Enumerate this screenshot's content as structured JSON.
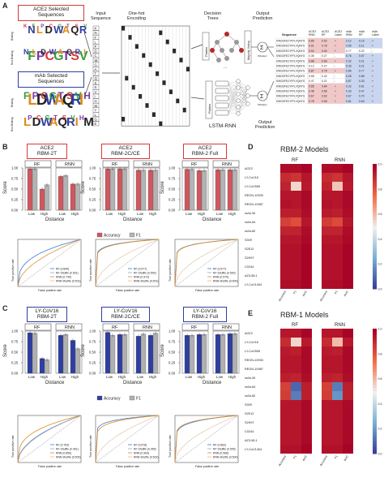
{
  "panel_a": {
    "letter": "A",
    "ace2_box": "ACE2 Selected\nSequences",
    "mab_box": "mAb Selected\nSequences",
    "input_seq": "Input\nSequence",
    "onehot": "One-hot\nEncoding",
    "trees": "Decision\nTrees",
    "majority": "Majority Voting",
    "flatten": "Flatten",
    "flatten2": "Flatten",
    "out_pred_top": "Output\nPrediction",
    "out_pred_bot": "Output\nPrediction",
    "lstm": "LSTM-RNN",
    "logo_labels": [
      "Binding",
      "Non-Binding",
      "Binding",
      "Non-Binding"
    ],
    "seq_letters": [
      "K",
      "N",
      "F",
      "L",
      "P",
      "D",
      "C",
      "W",
      "G",
      "A",
      "T",
      "Q",
      "S",
      "R",
      "V",
      "I",
      "H",
      "M",
      "Y",
      "L",
      "G",
      "E"
    ],
    "table_headers": [
      "Sequence",
      "ACE2 RNN",
      "ACE2 RF",
      "ACE2 Label",
      "mAb RNN",
      "mAb RF",
      "mAb Label"
    ],
    "table_rows": [
      [
        "KWGDFECYFFLVQNYG",
        "0.89",
        "0.92",
        "+",
        "0.12",
        "0.15",
        "+"
      ],
      [
        "KWGDFECYFFLVQNYG",
        "0.91",
        "0.78",
        "+",
        "0.55",
        "0.11",
        "+"
      ],
      [
        "KWGDFECYFFLVQNYG",
        "0.52",
        "0.64",
        "+",
        "0.77",
        "0.22",
        "-"
      ],
      [
        "KWGDFECYFFLVQNYG",
        "0.35",
        "0.27",
        "-",
        "0.76",
        "0.67",
        "+"
      ],
      [
        "KWGDFECYFFLVQNYG",
        "0.88",
        "0.83",
        "+",
        "0.32",
        "0.21",
        "+"
      ],
      [
        "KWGDFECYFFLVQNYG",
        "0.12",
        "0.27",
        "-",
        "0.33",
        "0.21",
        "+"
      ],
      [
        "KWGDFECYFFLVQNYG",
        "0.87",
        "0.79",
        "+",
        "0.86",
        "0.77",
        "+"
      ],
      [
        "KWGDFECYFFLVQNYG",
        "0.55",
        "0.42",
        "-",
        "0.28",
        "0.68",
        "+"
      ],
      [
        "KWGDFECYFFLVQNYG",
        "0.47",
        "0.21",
        "-",
        "0.57",
        "0.33",
        "+"
      ],
      [
        "KWGDFECYFFLVQNYG",
        "0.65",
        "0.84",
        "+",
        "0.22",
        "0.61",
        "+"
      ],
      [
        "KWGDFECYFFLVQNYG",
        "0.48",
        "0.56",
        "+",
        "0.33",
        "0.47",
        "+"
      ],
      [
        "KWGDFECYFFLVQNYG",
        "0.67",
        "0.62",
        "+",
        "0.67",
        "0.70",
        "+"
      ],
      [
        "KWGDFECYFFLVQNYG",
        "0.78",
        "0.96",
        "+",
        "0.81",
        "0.63",
        "+"
      ]
    ]
  },
  "panel_b": {
    "letter": "B",
    "titles": [
      "ACE2\nRBM-2T",
      "ACE2\nRBM-2C/CE",
      "ACE2\nRBM-2 Full"
    ],
    "rf": "RF",
    "rnn": "RNN",
    "ylabel": "Score",
    "xlabel": "Distance",
    "legend": [
      "Accuracy",
      "F1"
    ],
    "roc_ylabel": "True positive rate",
    "roc_xlabel": "False positive rate",
    "roc_legend_1": [
      "RF (0.849)",
      "RF Shuffle (0.501)",
      "RNN (0.749)",
      "RNN Shuffle (0.501)"
    ],
    "roc_legend_2": [
      "RF (0.977)",
      "RF Shuffle (0.500)",
      "RNN (0.973)",
      "RNN Shuffle (0.501)"
    ],
    "roc_legend_3": [
      "RF (0.977)",
      "RF Shuffle (0.500)",
      "RNN (0.975)",
      "RNN Shuffle (0.500)"
    ]
  },
  "panel_c": {
    "letter": "C",
    "titles": [
      "LY-CoV16\nRBM-2T",
      "LY-CoV16\nRBM-2C/CE",
      "LY-CoV16\nRBM-2 Full"
    ],
    "rf": "RF",
    "rnn": "RNN",
    "ylabel": "Score",
    "xlabel": "Distance",
    "legend": [
      "Accuracy",
      "F1"
    ],
    "roc_ylabel": "True positive rate",
    "roc_xlabel": "False positive rate",
    "roc_legend_1": [
      "RF (0.764)",
      "RF Shuffle (0.491)",
      "RNN (0.856)",
      "RNN Shuffle (0.500)"
    ],
    "roc_legend_2": [
      "RF (0.978)",
      "RF Shuffle (0.499)",
      "RNN (0.963)",
      "RNN Shuffle (0.502)"
    ],
    "roc_legend_3": [
      "RF (0.962)",
      "RF Shuffle (0.505)",
      "RNN (0.968)",
      "RNN Shuffle (0.500)"
    ]
  },
  "panel_d": {
    "letter": "D",
    "title": "RBM-2 Models",
    "sub": [
      "RF",
      "RNN"
    ],
    "rows": [
      "ACE2",
      "LY-CoV16",
      "LY-CoV555",
      "REGN-10933",
      "REGN-10987",
      "mAb-30",
      "mAb-64",
      "mAb-82",
      "S309",
      "S2E12",
      "S2H97",
      "C0244",
      "AZ3-58.1",
      "LY-CoV1404"
    ],
    "cols": [
      "Accuracy",
      "F1",
      "AUC"
    ]
  },
  "panel_e": {
    "letter": "E",
    "title": "RBM-1 Models",
    "sub": [
      "RF",
      "RNN"
    ],
    "rows": [
      "ACE2",
      "LY-CoV16",
      "LY-CoV555",
      "REGN-10933",
      "REGN-10987",
      "mAb-30",
      "mAb-64",
      "mAb-82",
      "S309",
      "S2E12",
      "S2H97",
      "C0244",
      "AZ3-58.1",
      "LY-CoV1404"
    ],
    "cols": [
      "Accuracy",
      "F1",
      "AUC"
    ]
  },
  "colorbar_ticks": [
    "1.0",
    "0.8",
    "0.6",
    "0.4",
    "0.2",
    "0.0"
  ],
  "colors": {
    "red": "#d0575f",
    "gray": "#b3b3b3",
    "blue": "#2f3ea0",
    "gray2": "#b0b0b0"
  },
  "chart_data": [
    {
      "type": "bar",
      "title": "ACE2 RBM-2T",
      "categories": [
        "Low",
        "High"
      ],
      "panels": [
        "RF",
        "RNN"
      ],
      "series": [
        {
          "name": "Accuracy",
          "values": {
            "RF": [
              0.98,
              0.5
            ],
            "RNN": [
              0.8,
              0.62
            ]
          }
        },
        {
          "name": "F1",
          "values": {
            "RF": [
              0.98,
              0.6
            ],
            "RNN": [
              0.82,
              0.62
            ]
          }
        }
      ],
      "ylim": [
        0,
        1
      ]
    },
    {
      "type": "bar",
      "title": "ACE2 RBM-2C/CE",
      "categories": [
        "Low",
        "High"
      ],
      "panels": [
        "RF",
        "RNN"
      ],
      "series": [
        {
          "name": "Accuracy",
          "values": {
            "RF": [
              0.98,
              0.98
            ],
            "RNN": [
              0.95,
              0.95
            ]
          }
        },
        {
          "name": "F1",
          "values": {
            "RF": [
              0.98,
              0.98
            ],
            "RNN": [
              0.95,
              0.95
            ]
          }
        }
      ],
      "ylim": [
        0,
        1
      ]
    },
    {
      "type": "bar",
      "title": "ACE2 RBM-2 Full",
      "categories": [
        "Low",
        "High"
      ],
      "panels": [
        "RF",
        "RNN"
      ],
      "series": [
        {
          "name": "Accuracy",
          "values": {
            "RF": [
              0.97,
              0.94
            ],
            "RNN": [
              0.96,
              0.96
            ]
          }
        },
        {
          "name": "F1",
          "values": {
            "RF": [
              0.97,
              0.94
            ],
            "RNN": [
              0.96,
              0.96
            ]
          }
        }
      ],
      "ylim": [
        0,
        1
      ]
    },
    {
      "type": "bar",
      "title": "LY-CoV16 RBM-2T",
      "categories": [
        "Low",
        "High"
      ],
      "panels": [
        "RF",
        "RNN"
      ],
      "series": [
        {
          "name": "Accuracy",
          "values": {
            "RF": [
              0.96,
              0.35
            ],
            "RNN": [
              0.9,
              0.78
            ]
          }
        },
        {
          "name": "F1",
          "values": {
            "RF": [
              0.95,
              0.32
            ],
            "RNN": [
              0.92,
              0.58
            ]
          }
        }
      ],
      "ylim": [
        0,
        1
      ]
    },
    {
      "type": "bar",
      "title": "LY-CoV16 RBM-2C/CE",
      "categories": [
        "Low",
        "High"
      ],
      "panels": [
        "RF",
        "RNN"
      ],
      "series": [
        {
          "name": "Accuracy",
          "values": {
            "RF": [
              0.97,
              0.92
            ],
            "RNN": [
              0.88,
              0.9
            ]
          }
        },
        {
          "name": "F1",
          "values": {
            "RF": [
              0.9,
              0.92
            ],
            "RNN": [
              0.93,
              0.95
            ]
          }
        }
      ],
      "ylim": [
        0,
        1
      ]
    },
    {
      "type": "bar",
      "title": "LY-CoV16 RBM-2 Full",
      "categories": [
        "Low",
        "High"
      ],
      "panels": [
        "RF",
        "RNN"
      ],
      "series": [
        {
          "name": "Accuracy",
          "values": {
            "RF": [
              0.9,
              0.92
            ],
            "RNN": [
              0.92,
              0.94
            ]
          }
        },
        {
          "name": "F1",
          "values": {
            "RF": [
              0.9,
              0.92
            ],
            "RNN": [
              0.92,
              0.94
            ]
          }
        }
      ],
      "ylim": [
        0,
        1
      ]
    },
    {
      "type": "heatmap",
      "title": "RBM-2 Models",
      "rows": [
        "ACE2",
        "LY-CoV16",
        "LY-CoV555",
        "REGN-10933",
        "REGN-10987",
        "mAb-30",
        "mAb-64",
        "mAb-82",
        "S309",
        "S2E12",
        "S2H97",
        "C0244",
        "AZ3-58.1",
        "LY-CoV1404"
      ],
      "cols": [
        "Accuracy",
        "F1",
        "AUC"
      ],
      "RF": [
        [
          0.97,
          0.97,
          0.99
        ],
        [
          0.9,
          0.88,
          0.95
        ],
        [
          0.92,
          0.55,
          0.94
        ],
        [
          0.95,
          0.95,
          0.98
        ],
        [
          0.96,
          0.95,
          0.98
        ],
        [
          0.93,
          0.93,
          0.97
        ],
        [
          0.85,
          0.82,
          0.95
        ],
        [
          0.92,
          0.92,
          0.97
        ],
        [
          0.95,
          0.95,
          0.98
        ],
        [
          0.96,
          0.96,
          0.99
        ],
        [
          0.96,
          0.96,
          0.99
        ],
        [
          0.96,
          0.96,
          0.99
        ],
        [
          0.96,
          0.96,
          0.99
        ],
        [
          0.97,
          0.97,
          0.99
        ]
      ],
      "RNN": [
        [
          0.97,
          0.97,
          0.99
        ],
        [
          0.9,
          0.88,
          0.95
        ],
        [
          0.92,
          0.58,
          0.94
        ],
        [
          0.95,
          0.95,
          0.98
        ],
        [
          0.96,
          0.95,
          0.98
        ],
        [
          0.94,
          0.93,
          0.97
        ],
        [
          0.86,
          0.83,
          0.95
        ],
        [
          0.92,
          0.92,
          0.97
        ],
        [
          0.95,
          0.95,
          0.98
        ],
        [
          0.96,
          0.96,
          0.99
        ],
        [
          0.96,
          0.96,
          0.99
        ],
        [
          0.96,
          0.96,
          0.99
        ],
        [
          0.96,
          0.96,
          0.99
        ],
        [
          0.97,
          0.97,
          0.99
        ]
      ]
    },
    {
      "type": "heatmap",
      "title": "RBM-1 Models",
      "rows": [
        "ACE2",
        "LY-CoV16",
        "LY-CoV555",
        "REGN-10933",
        "REGN-10987",
        "mAb-30",
        "mAb-64",
        "mAb-82",
        "S309",
        "S2E12",
        "S2H97",
        "C0244",
        "AZ3-58.1",
        "LY-CoV1404"
      ],
      "cols": [
        "Accuracy",
        "F1",
        "AUC"
      ],
      "RF": [
        [
          0.95,
          0.95,
          0.99
        ],
        [
          0.9,
          0.55,
          0.94
        ],
        [
          0.94,
          0.93,
          0.98
        ],
        [
          0.95,
          0.95,
          0.98
        ],
        [
          0.95,
          0.95,
          0.98
        ],
        [
          0.93,
          0.92,
          0.97
        ],
        [
          0.85,
          0.1,
          0.93
        ],
        [
          0.86,
          0.15,
          0.93
        ],
        [
          0.95,
          0.95,
          0.98
        ],
        [
          0.95,
          0.95,
          0.98
        ],
        [
          0.95,
          0.95,
          0.98
        ],
        [
          0.95,
          0.95,
          0.98
        ],
        [
          0.95,
          0.95,
          0.98
        ],
        [
          0.96,
          0.96,
          0.99
        ]
      ],
      "RNN": [
        [
          0.95,
          0.95,
          0.99
        ],
        [
          0.9,
          0.6,
          0.94
        ],
        [
          0.94,
          0.93,
          0.98
        ],
        [
          0.95,
          0.95,
          0.98
        ],
        [
          0.95,
          0.95,
          0.98
        ],
        [
          0.93,
          0.92,
          0.97
        ],
        [
          0.85,
          0.15,
          0.93
        ],
        [
          0.86,
          0.2,
          0.93
        ],
        [
          0.95,
          0.95,
          0.98
        ],
        [
          0.95,
          0.95,
          0.98
        ],
        [
          0.95,
          0.95,
          0.98
        ],
        [
          0.95,
          0.95,
          0.98
        ],
        [
          0.95,
          0.95,
          0.98
        ],
        [
          0.96,
          0.96,
          0.99
        ]
      ]
    }
  ]
}
